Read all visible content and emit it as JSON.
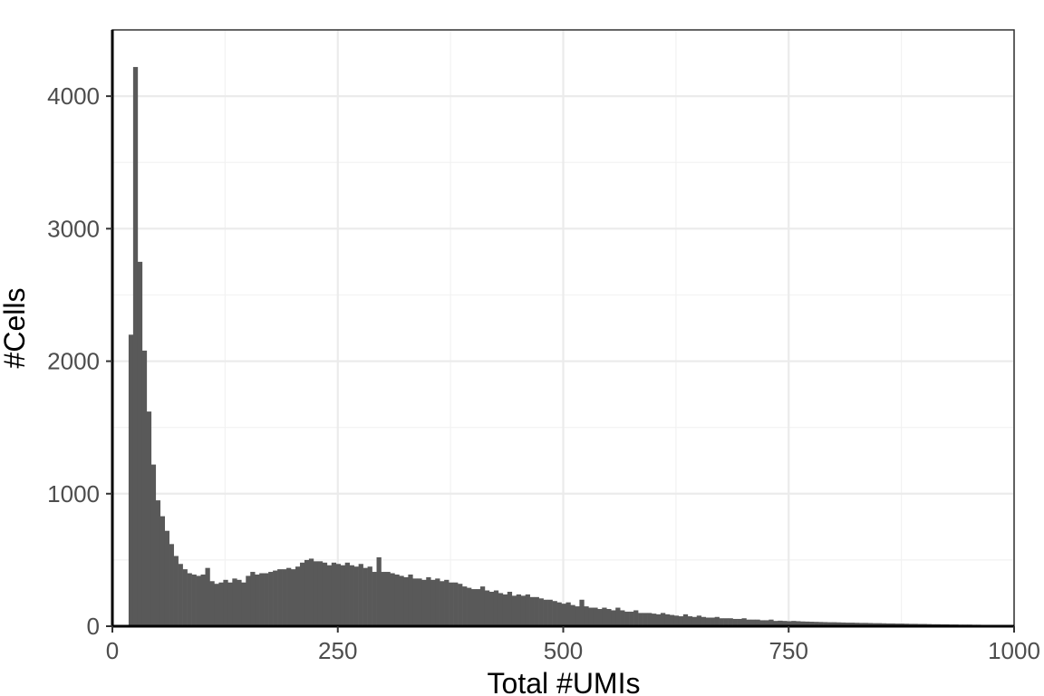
{
  "chart_data": {
    "type": "bar",
    "subtype": "histogram",
    "title": "",
    "xlabel": "Total #UMIs",
    "ylabel": "#Cells",
    "xlim": [
      0,
      1000
    ],
    "ylim": [
      0,
      4500
    ],
    "x_ticks": [
      0,
      250,
      500,
      750,
      1000
    ],
    "x_tick_labels": [
      "0",
      "250",
      "500",
      "750",
      "1000"
    ],
    "y_ticks": [
      0,
      1000,
      2000,
      3000,
      4000
    ],
    "y_tick_labels": [
      "0",
      "1000",
      "2000",
      "3000",
      "4000"
    ],
    "grid": true,
    "bar_color": "#595959",
    "bin_start": 18,
    "bin_width": 5,
    "values": [
      2200,
      4220,
      2750,
      2080,
      1620,
      1220,
      950,
      830,
      720,
      620,
      530,
      470,
      430,
      400,
      390,
      380,
      390,
      440,
      340,
      320,
      330,
      350,
      330,
      360,
      350,
      330,
      380,
      410,
      390,
      400,
      400,
      410,
      420,
      430,
      430,
      440,
      430,
      450,
      480,
      500,
      510,
      490,
      490,
      480,
      460,
      480,
      470,
      460,
      480,
      460,
      450,
      470,
      440,
      450,
      410,
      520,
      410,
      410,
      400,
      390,
      380,
      370,
      390,
      360,
      360,
      350,
      370,
      350,
      360,
      340,
      350,
      330,
      330,
      320,
      300,
      290,
      280,
      280,
      300,
      270,
      260,
      270,
      250,
      240,
      260,
      230,
      240,
      230,
      240,
      220,
      220,
      210,
      200,
      200,
      190,
      180,
      170,
      180,
      160,
      150,
      200,
      150,
      140,
      140,
      130,
      140,
      130,
      120,
      140,
      120,
      110,
      110,
      120,
      100,
      100,
      100,
      95,
      90,
      100,
      90,
      85,
      80,
      75,
      90,
      75,
      70,
      80,
      70,
      65,
      65,
      70,
      60,
      60,
      60,
      55,
      55,
      60,
      50,
      50,
      50,
      45,
      45,
      50,
      40,
      42,
      40,
      38,
      40,
      38,
      36,
      35,
      34,
      33,
      32,
      31,
      30,
      30,
      29,
      28,
      27,
      27,
      26,
      25,
      25,
      24,
      23,
      23,
      22,
      21,
      21,
      20,
      20,
      19,
      18,
      18,
      17,
      17,
      16,
      15,
      15,
      14,
      14,
      13,
      13,
      12,
      12,
      12,
      11,
      11,
      10,
      10,
      10,
      9
    ]
  }
}
